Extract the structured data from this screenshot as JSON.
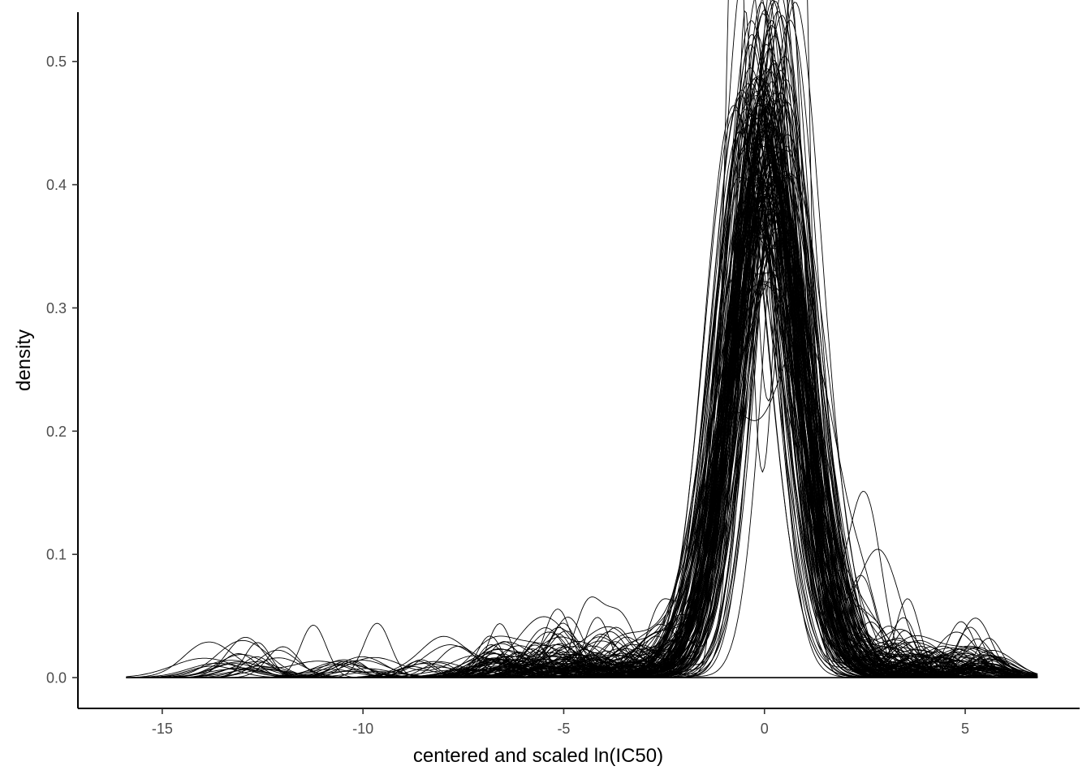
{
  "chart_data": {
    "type": "line",
    "description_kind": "overlaid kernel density curves, one per sample",
    "xlabel": "centered and scaled ln(IC50)",
    "ylabel": "density",
    "xlim": [
      -17.1,
      7.85
    ],
    "ylim": [
      -0.025,
      0.54
    ],
    "x_ticks": [
      -15,
      -10,
      -5,
      0,
      5
    ],
    "x_tick_labels": [
      "-15",
      "-10",
      "-5",
      "0",
      "5"
    ],
    "y_ticks": [
      0.0,
      0.1,
      0.2,
      0.3,
      0.4,
      0.5
    ],
    "y_tick_labels": [
      "0.0",
      "0.1",
      "0.2",
      "0.3",
      "0.4",
      "0.5"
    ],
    "grid": false,
    "legend": "none",
    "line_color": "#000000",
    "curve_count": 150,
    "data_x_range": [
      -15.9,
      6.8
    ],
    "peak_density_range": [
      0.36,
      0.515
    ],
    "peak_location_range": [
      -0.9,
      1.0
    ],
    "highlighted_curves": [
      {
        "peaks": [
          [
            -0.75,
            0.51
          ],
          [
            -0.5,
            0.515
          ],
          [
            0.7,
            0.512
          ],
          [
            1.0,
            0.46
          ]
        ]
      },
      {
        "secondary_bump": [
          2.5,
          0.14
        ]
      },
      {
        "secondary_bump": [
          2.8,
          0.1
        ]
      },
      {
        "secondary_bump": [
          -4.5,
          0.045
        ]
      }
    ]
  }
}
